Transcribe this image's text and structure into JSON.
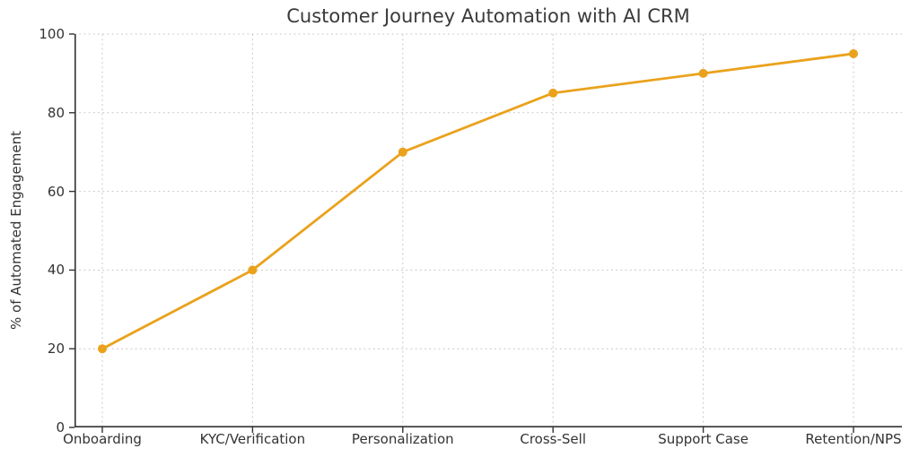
{
  "chart_data": {
    "type": "line",
    "title": "Customer Journey Automation with AI CRM",
    "xlabel": "",
    "ylabel": "% of Automated Engagement",
    "categories": [
      "Onboarding",
      "KYC/Verification",
      "Personalization",
      "Cross-Sell",
      "Support Case",
      "Retention/NPS"
    ],
    "series": [
      {
        "name": "% of Automated Engagement",
        "values": [
          20,
          40,
          70,
          85,
          90,
          95
        ]
      }
    ],
    "ylim": [
      0,
      100
    ],
    "yticks": [
      0,
      20,
      40,
      60,
      80,
      100
    ],
    "grid": true,
    "grid_style": "dashed",
    "legend": false,
    "marker": "circle",
    "colors": {
      "line": "#EAA21C",
      "marker": "#EAA21C",
      "grid": "#C9C9C9",
      "axis": "#333333",
      "tick_text": "#333333",
      "title_text": "#3A3A3A",
      "background": "#FFFFFF"
    }
  }
}
